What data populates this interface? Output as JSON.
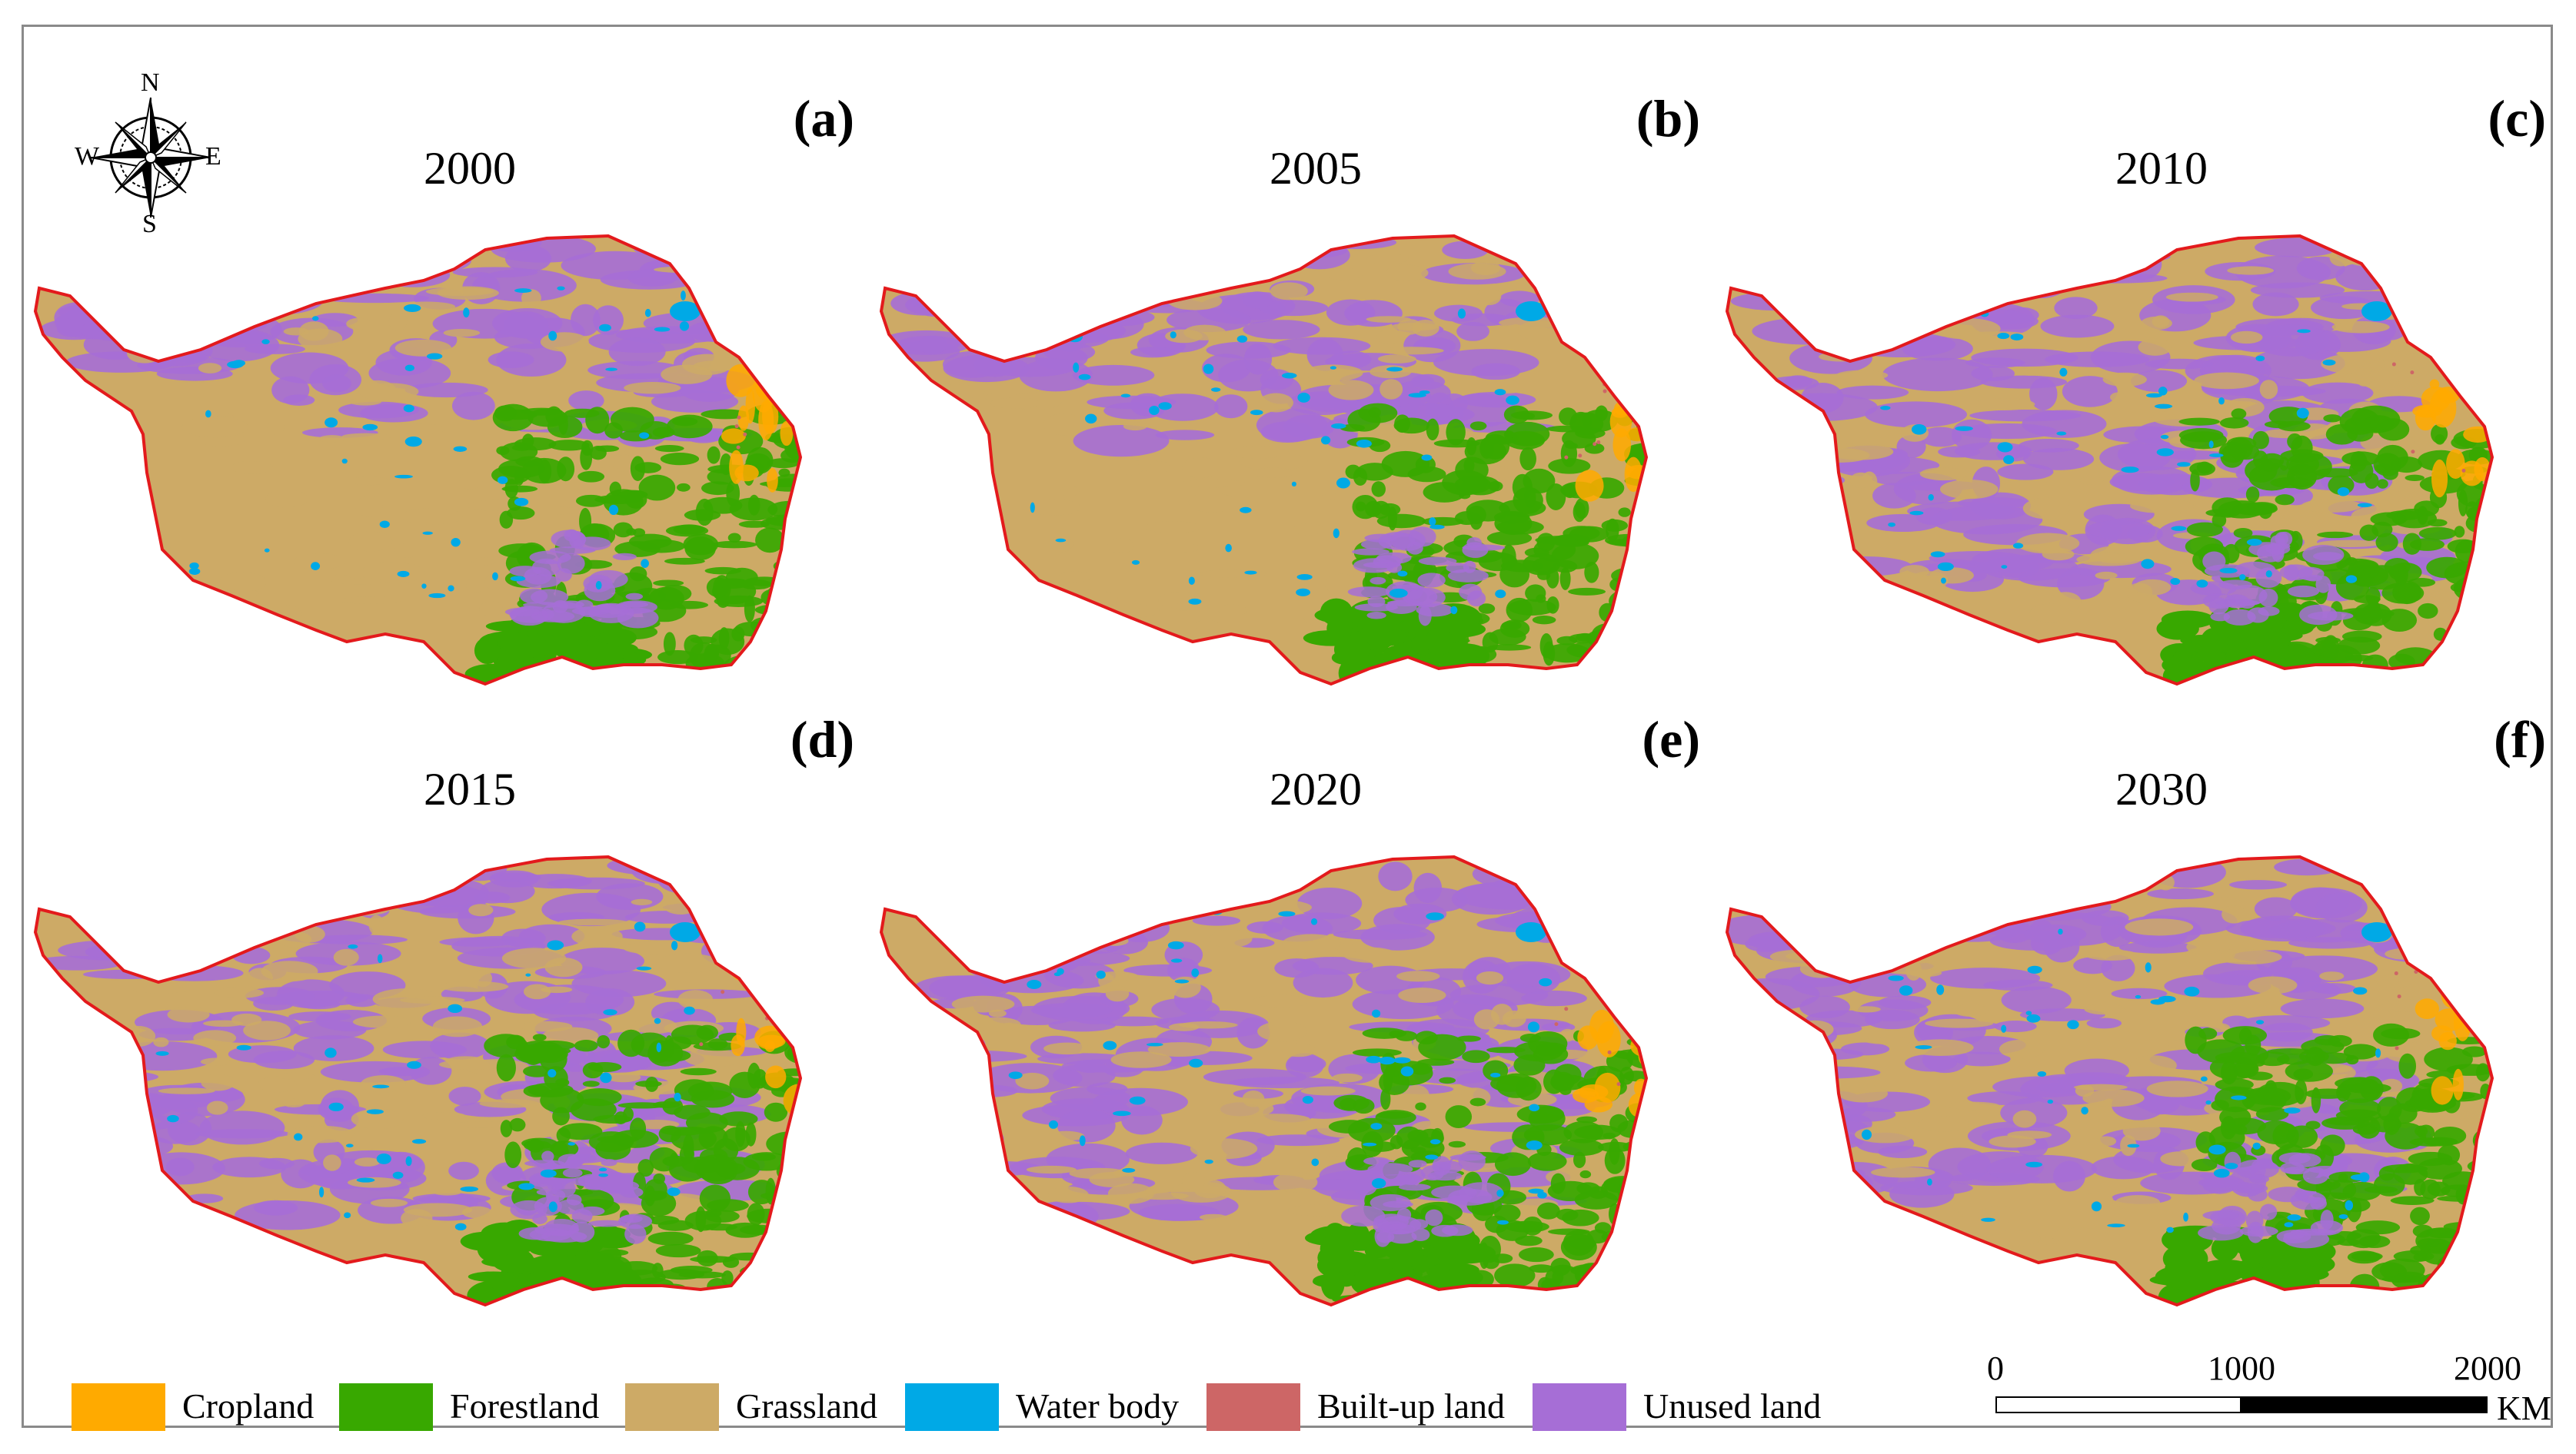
{
  "compass": {
    "north": "N",
    "south": "S",
    "east": "E",
    "west": "W"
  },
  "panels": [
    {
      "letter": "(a)",
      "year": "2000"
    },
    {
      "letter": "(b)",
      "year": "2005"
    },
    {
      "letter": "(c)",
      "year": "2010"
    },
    {
      "letter": "(d)",
      "year": "2015"
    },
    {
      "letter": "(e)",
      "year": "2020"
    },
    {
      "letter": "(f)",
      "year": "2030"
    }
  ],
  "colors": {
    "cropland": "#ffaa00",
    "forestland": "#38a800",
    "grassland": "#cdaa66",
    "water_body": "#00a9e6",
    "built_up_land": "#cd6666",
    "unused_land": "#a66ed6",
    "boundary": "#e31a1c"
  },
  "legend": [
    {
      "label": "Cropland",
      "color": "#ffaa00"
    },
    {
      "label": "Forestland",
      "color": "#38a800"
    },
    {
      "label": "Grassland",
      "color": "#cdaa66"
    },
    {
      "label": "Water body",
      "color": "#00a9e6"
    },
    {
      "label": "Built-up land",
      "color": "#cd6666"
    },
    {
      "label": "Unused land",
      "color": "#a66ed6"
    }
  ],
  "scale_bar": {
    "ticks": [
      "0",
      "1000",
      "2000"
    ],
    "unit": "KM"
  }
}
